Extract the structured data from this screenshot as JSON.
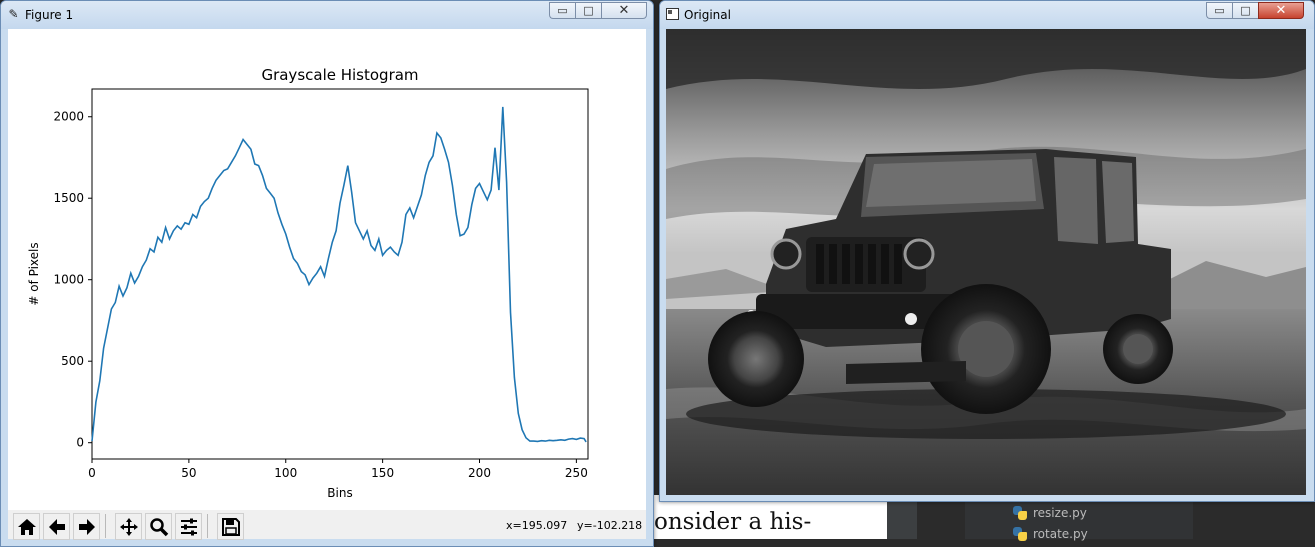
{
  "figure_window": {
    "title": "Figure 1",
    "controls": {
      "minimize": "▭",
      "maximize": "□",
      "close": "✕"
    },
    "toolbar": {
      "buttons": [
        "home-icon",
        "back-icon",
        "forward-icon",
        "pan-icon",
        "zoom-icon",
        "configure-subplots-icon",
        "save-icon"
      ],
      "x_readout": "x=195.097",
      "y_readout": "y=-102.218"
    }
  },
  "image_window": {
    "title": "Original",
    "controls": {
      "minimize": "▭",
      "maximize": "□",
      "close": "✕"
    },
    "image_description_color": "#8a8a8a"
  },
  "background": {
    "doc_text": "onsider a his-",
    "ide_files": [
      "resize.py",
      "rotate.py"
    ]
  },
  "chart_data": {
    "type": "line",
    "title": "Grayscale Histogram",
    "xlabel": "Bins",
    "ylabel": "# of Pixels",
    "xlim": [
      0,
      256
    ],
    "ylim": [
      -100,
      2170
    ],
    "xticks": [
      0,
      50,
      100,
      150,
      200,
      250
    ],
    "yticks": [
      0,
      500,
      1000,
      1500,
      2000
    ],
    "grid": false,
    "line_color": "#1f77b4",
    "series": [
      {
        "x": [
          0,
          2,
          4,
          6,
          8,
          10,
          12,
          14,
          16,
          18,
          20,
          22,
          24,
          26,
          28,
          30,
          32,
          34,
          36,
          38,
          40,
          42,
          44,
          46,
          48,
          50,
          52,
          54,
          56,
          58,
          60,
          62,
          64,
          66,
          68,
          70,
          72,
          74,
          76,
          78,
          80,
          82,
          84,
          86,
          88,
          90,
          92,
          94,
          96,
          98,
          100,
          102,
          104,
          106,
          108,
          110,
          112,
          114,
          116,
          118,
          120,
          122,
          124,
          126,
          128,
          130,
          132,
          134,
          136,
          138,
          140,
          142,
          144,
          146,
          148,
          150,
          152,
          154,
          156,
          158,
          160,
          162,
          164,
          166,
          168,
          170,
          172,
          174,
          176,
          178,
          180,
          182,
          184,
          186,
          188,
          190,
          192,
          194,
          196,
          198,
          200,
          202,
          204,
          206,
          208,
          210,
          212,
          214,
          216,
          218,
          220,
          222,
          224,
          226,
          228,
          230,
          232,
          234,
          236,
          238,
          240,
          242,
          244,
          246,
          248,
          250,
          252,
          254,
          255
        ],
        "y": [
          10,
          250,
          380,
          580,
          700,
          820,
          860,
          960,
          900,
          950,
          1040,
          980,
          1020,
          1080,
          1120,
          1190,
          1170,
          1260,
          1230,
          1320,
          1250,
          1300,
          1330,
          1310,
          1350,
          1340,
          1400,
          1380,
          1450,
          1480,
          1500,
          1560,
          1610,
          1640,
          1670,
          1680,
          1720,
          1760,
          1810,
          1860,
          1830,
          1800,
          1710,
          1700,
          1640,
          1560,
          1530,
          1500,
          1410,
          1340,
          1280,
          1200,
          1130,
          1100,
          1050,
          1030,
          970,
          1010,
          1040,
          1080,
          1020,
          1130,
          1230,
          1300,
          1470,
          1580,
          1700,
          1540,
          1350,
          1300,
          1250,
          1300,
          1210,
          1180,
          1250,
          1150,
          1180,
          1200,
          1170,
          1150,
          1230,
          1400,
          1440,
          1380,
          1450,
          1520,
          1640,
          1720,
          1760,
          1900,
          1870,
          1800,
          1720,
          1580,
          1400,
          1270,
          1280,
          1320,
          1460,
          1560,
          1590,
          1540,
          1490,
          1550,
          1810,
          1550,
          2060,
          1600,
          800,
          400,
          180,
          80,
          30,
          10,
          10,
          8,
          12,
          10,
          15,
          12,
          15,
          18,
          15,
          22,
          25,
          20,
          28,
          25,
          5
        ]
      }
    ]
  }
}
